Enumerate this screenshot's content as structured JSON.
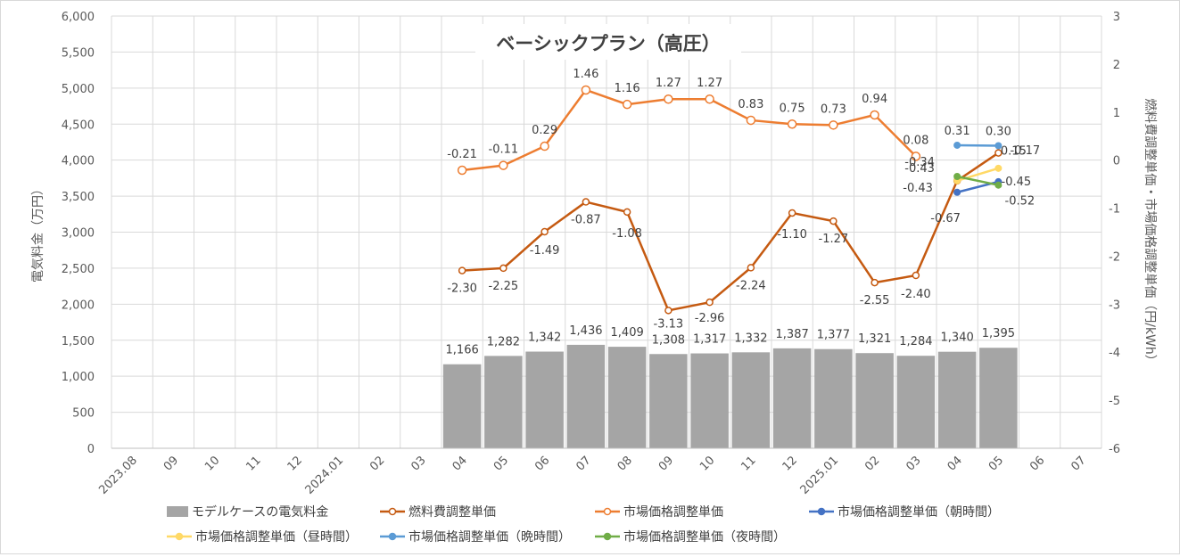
{
  "chart_data": {
    "type": "bar",
    "title": "ベーシックプラン（高圧）",
    "ylabel": "電気料金（万円）",
    "y2label": "燃料費調整単価・市場価格調整単価（円/kWh）",
    "ylim": [
      0,
      6000
    ],
    "y2lim": [
      -6,
      3
    ],
    "yticks": [
      "0",
      "500",
      "1,000",
      "1,500",
      "2,000",
      "2,500",
      "3,000",
      "3,500",
      "4,000",
      "4,500",
      "5,000",
      "5,500",
      "6,000"
    ],
    "y2ticks": [
      "-6",
      "-5",
      "-4",
      "-3",
      "-2",
      "-1",
      "0",
      "1",
      "2",
      "3"
    ],
    "categories": [
      "2023.08",
      "09",
      "10",
      "11",
      "12",
      "2024.01",
      "02",
      "03",
      "04",
      "05",
      "06",
      "07",
      "08",
      "09",
      "10",
      "11",
      "12",
      "2025.01",
      "02",
      "03",
      "04",
      "05",
      "06",
      "07"
    ],
    "grid": true,
    "legend_position": "bottom",
    "series": [
      {
        "name": "モデルケースの電気料金",
        "type": "bar",
        "axis": "left",
        "color": "#a5a5a5",
        "values": [
          null,
          null,
          null,
          null,
          null,
          null,
          null,
          null,
          1166,
          1282,
          1342,
          1436,
          1409,
          1308,
          1317,
          1332,
          1387,
          1377,
          1321,
          1284,
          1340,
          1395,
          null,
          null
        ],
        "labels": [
          "",
          "",
          "",
          "",
          "",
          "",
          "",
          "",
          "1,166",
          "1,282",
          "1,342",
          "1,436",
          "1,409",
          "1,308",
          "1,317",
          "1,332",
          "1,387",
          "1,377",
          "1,321",
          "1,284",
          "1,340",
          "1,395",
          "",
          ""
        ]
      },
      {
        "name": "燃料費調整単価",
        "type": "line",
        "axis": "right",
        "color": "#c55a11",
        "values": [
          null,
          null,
          null,
          null,
          null,
          null,
          null,
          null,
          -2.3,
          -2.25,
          -1.49,
          -0.87,
          -1.08,
          -3.13,
          -2.96,
          -2.24,
          -1.1,
          -1.27,
          -2.55,
          -2.4,
          -0.43,
          0.15,
          null,
          null
        ],
        "labels": [
          "",
          "",
          "",
          "",
          "",
          "",
          "",
          "",
          "-2.30",
          "-2.25",
          "-1.49",
          "-0.87",
          "-1.08",
          "-3.13",
          "-2.96",
          "-2.24",
          "-1.10",
          "-1.27",
          "-2.55",
          "-2.40",
          "-0.43",
          "0.15",
          "",
          ""
        ]
      },
      {
        "name": "市場価格調整単価",
        "type": "line",
        "axis": "right",
        "color": "#ed7d31",
        "values": [
          null,
          null,
          null,
          null,
          null,
          null,
          null,
          null,
          -0.21,
          -0.11,
          0.29,
          1.46,
          1.16,
          1.27,
          1.27,
          0.83,
          0.75,
          0.73,
          0.94,
          0.08,
          null,
          null,
          null,
          null
        ],
        "labels": [
          "",
          "",
          "",
          "",
          "",
          "",
          "",
          "",
          "-0.21",
          "-0.11",
          "0.29",
          "1.46",
          "1.16",
          "1.27",
          "1.27",
          "0.83",
          "0.75",
          "0.73",
          "0.94",
          "0.08",
          "",
          "",
          "",
          ""
        ]
      },
      {
        "name": "市場価格調整単価（朝時間）",
        "type": "line",
        "axis": "right",
        "color": "#4472c4",
        "values": [
          null,
          null,
          null,
          null,
          null,
          null,
          null,
          null,
          null,
          null,
          null,
          null,
          null,
          null,
          null,
          null,
          null,
          null,
          null,
          null,
          -0.67,
          -0.45,
          null,
          null
        ],
        "labels": [
          "",
          "",
          "",
          "",
          "",
          "",
          "",
          "",
          "",
          "",
          "",
          "",
          "",
          "",
          "",
          "",
          "",
          "",
          "",
          "",
          "-0.67",
          "-0.45",
          "",
          ""
        ]
      },
      {
        "name": "市場価格調整単価（昼時間）",
        "type": "line",
        "axis": "right",
        "color": "#ffd966",
        "values": [
          null,
          null,
          null,
          null,
          null,
          null,
          null,
          null,
          null,
          null,
          null,
          null,
          null,
          null,
          null,
          null,
          null,
          null,
          null,
          null,
          -0.43,
          -0.17,
          null,
          null
        ],
        "labels": [
          "",
          "",
          "",
          "",
          "",
          "",
          "",
          "",
          "",
          "",
          "",
          "",
          "",
          "",
          "",
          "",
          "",
          "",
          "",
          "",
          "-0.43",
          "-0.17",
          "",
          ""
        ]
      },
      {
        "name": "市場価格調整単価（晩時間）",
        "type": "line",
        "axis": "right",
        "color": "#5b9bd5",
        "values": [
          null,
          null,
          null,
          null,
          null,
          null,
          null,
          null,
          null,
          null,
          null,
          null,
          null,
          null,
          null,
          null,
          null,
          null,
          null,
          null,
          0.31,
          0.3,
          null,
          null
        ],
        "labels": [
          "",
          "",
          "",
          "",
          "",
          "",
          "",
          "",
          "",
          "",
          "",
          "",
          "",
          "",
          "",
          "",
          "",
          "",
          "",
          "",
          "0.31",
          "0.30",
          "",
          ""
        ]
      },
      {
        "name": "市場価格調整単価（夜時間）",
        "type": "line",
        "axis": "right",
        "color": "#70ad47",
        "values": [
          null,
          null,
          null,
          null,
          null,
          null,
          null,
          null,
          null,
          null,
          null,
          null,
          null,
          null,
          null,
          null,
          null,
          null,
          null,
          null,
          -0.34,
          -0.52,
          null,
          null
        ],
        "labels": [
          "",
          "",
          "",
          "",
          "",
          "",
          "",
          "",
          "",
          "",
          "",
          "",
          "",
          "",
          "",
          "",
          "",
          "",
          "",
          "",
          "-0.34",
          "-0.52",
          "",
          ""
        ]
      }
    ]
  }
}
